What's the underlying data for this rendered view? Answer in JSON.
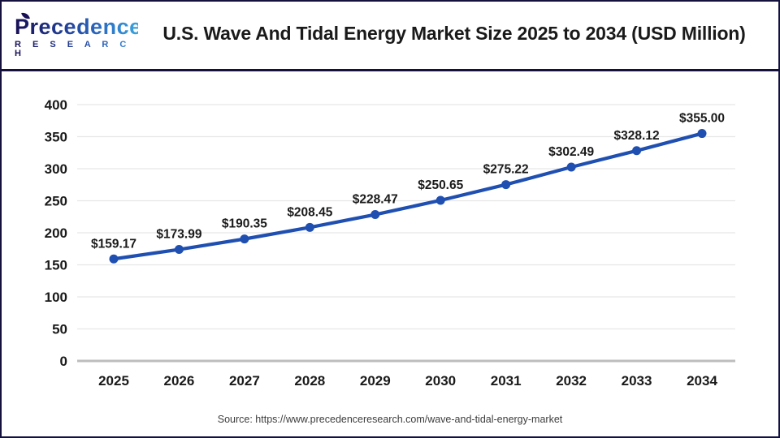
{
  "logo": {
    "name": "Precedence",
    "subname": "R E S E A R C H"
  },
  "header": {
    "title": "U.S. Wave And Tidal Energy Market Size 2025 to 2034 (USD Million)"
  },
  "footer": {
    "source": "Source: https://www.precedenceresearch.com/wave-and-tidal-energy-market"
  },
  "colors": {
    "line": "#1f4fb0",
    "point": "#1f4fb0",
    "grid": "#e7e7e7",
    "zero_line": "#bdbdbd",
    "axis_label": "#1a1a1a",
    "data_label": "#1a1a1a",
    "frame_navy": "#14123c"
  },
  "chart_data": {
    "type": "line",
    "title": "U.S. Wave And Tidal Energy Market Size 2025 to 2034 (USD Million)",
    "categories": [
      "2025",
      "2026",
      "2027",
      "2028",
      "2029",
      "2030",
      "2031",
      "2032",
      "2033",
      "2034"
    ],
    "values": [
      159.17,
      173.99,
      190.35,
      208.45,
      228.47,
      250.65,
      275.22,
      302.49,
      328.12,
      355.0
    ],
    "point_labels": [
      "$159.17",
      "$173.99",
      "$190.35",
      "$208.45",
      "$228.47",
      "$250.65",
      "$275.22",
      "$302.49",
      "$328.12",
      "$355.00"
    ],
    "xlabel": "",
    "ylabel": "",
    "ylim": [
      0,
      400
    ],
    "ytick": 50,
    "ytick_labels": [
      "0",
      "50",
      "100",
      "150",
      "200",
      "250",
      "300",
      "350",
      "400"
    ],
    "grid": true,
    "legend": false
  }
}
